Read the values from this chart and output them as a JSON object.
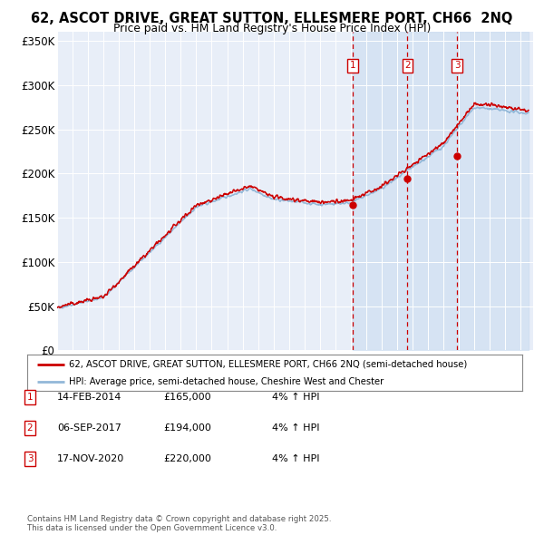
{
  "title": "62, ASCOT DRIVE, GREAT SUTTON, ELLESMERE PORT, CH66  2NQ",
  "subtitle": "Price paid vs. HM Land Registry's House Price Index (HPI)",
  "ylim": [
    0,
    360000
  ],
  "yticks": [
    0,
    50000,
    100000,
    150000,
    200000,
    250000,
    300000,
    350000
  ],
  "ytick_labels": [
    "£0",
    "£50K",
    "£100K",
    "£150K",
    "£200K",
    "£250K",
    "£300K",
    "£350K"
  ],
  "xlim_start": 1995.0,
  "xlim_end": 2025.8,
  "background_color": "#ffffff",
  "plot_bg_color": "#e8eef8",
  "grid_color": "#ffffff",
  "hpi_color": "#93b8d8",
  "hpi_fill_color": "#c8daf0",
  "price_color": "#cc0000",
  "sale_line_color": "#cc0000",
  "shade_start": 2014.12,
  "transactions": [
    {
      "label": "1",
      "date": 2014.12,
      "price": 165000,
      "date_str": "14-FEB-2014",
      "price_str": "£165,000",
      "hpi_str": "4% ↑ HPI"
    },
    {
      "label": "2",
      "date": 2017.67,
      "price": 194000,
      "date_str": "06-SEP-2017",
      "price_str": "£194,000",
      "hpi_str": "4% ↑ HPI"
    },
    {
      "label": "3",
      "date": 2020.88,
      "price": 220000,
      "date_str": "17-NOV-2020",
      "price_str": "£220,000",
      "hpi_str": "4% ↑ HPI"
    }
  ],
  "legend_line1": "62, ASCOT DRIVE, GREAT SUTTON, ELLESMERE PORT, CH66 2NQ (semi-detached house)",
  "legend_line2": "HPI: Average price, semi-detached house, Cheshire West and Chester",
  "footnote": "Contains HM Land Registry data © Crown copyright and database right 2025.\nThis data is licensed under the Open Government Licence v3.0."
}
